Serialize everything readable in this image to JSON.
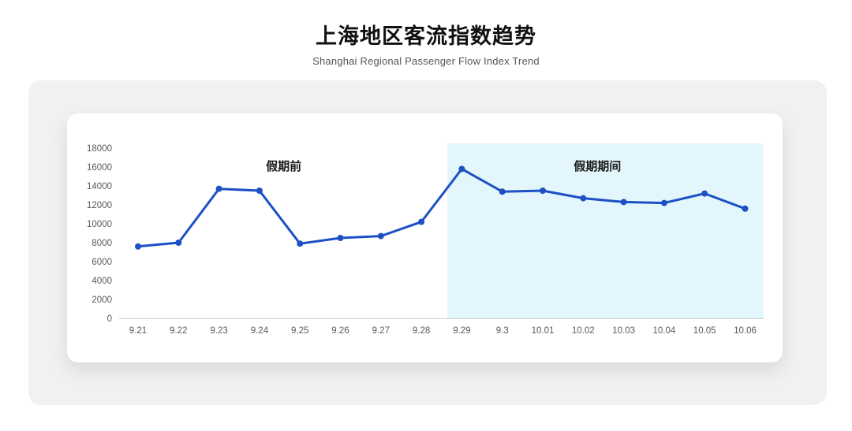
{
  "header": {
    "title": "上海地区客流指数趋势",
    "subtitle": "Shanghai Regional Passenger Flow Index Trend"
  },
  "chart_data": {
    "type": "line",
    "title": "上海地区客流指数趋势",
    "subtitle": "Shanghai Regional Passenger Flow Index Trend",
    "categories": [
      "9.21",
      "9.22",
      "9.23",
      "9.24",
      "9.25",
      "9.26",
      "9.27",
      "9.28",
      "9.29",
      "9.3",
      "10.01",
      "10.02",
      "10.03",
      "10.04",
      "10.05",
      "10.06"
    ],
    "values": [
      7600,
      8000,
      13700,
      13500,
      7900,
      8500,
      8700,
      10200,
      15800,
      13400,
      13500,
      12700,
      12300,
      12200,
      13200,
      11600
    ],
    "xlabel": "",
    "ylabel": "",
    "ylim": [
      0,
      18000
    ],
    "y_ticks": [
      0,
      2000,
      4000,
      6000,
      8000,
      10000,
      12000,
      14000,
      16000,
      18000
    ],
    "grid": false,
    "legend": false,
    "marker": "circle",
    "annotations": [
      {
        "text": "假期前",
        "x_index": 3.6,
        "y_value": 16100
      },
      {
        "text": "假期期间",
        "x_index": 11.35,
        "y_value": 16100
      }
    ],
    "highlight_region": {
      "label": "假期期间",
      "from_index": 7.64,
      "to_index": 15.45
    }
  },
  "colors": {
    "line": "#1d4fc5",
    "marker": "#1d4fc5",
    "highlight": "#e3f6fb",
    "panel_bg": "#f1f1f1",
    "card_bg": "#ffffff",
    "axis_line": "#cccccc",
    "tick_text": "#595959",
    "title_text": "#111111",
    "subtitle_text": "#575757",
    "annotation_text": "#1a1a1a"
  }
}
